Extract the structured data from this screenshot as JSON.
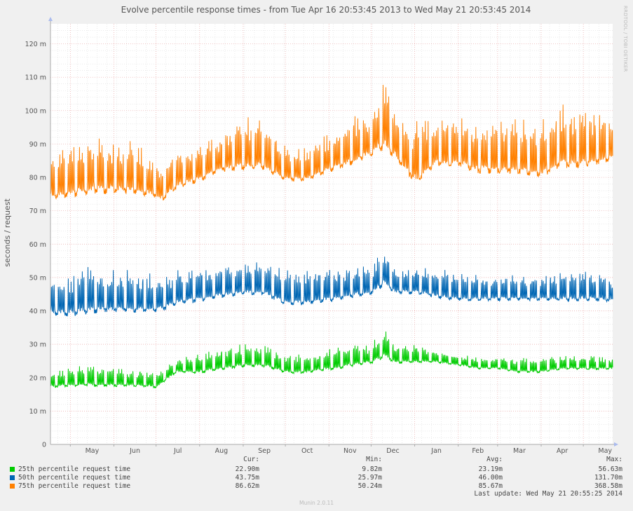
{
  "chart_data": {
    "type": "line",
    "title": "Evolve percentile response times - from Tue Apr 16 20:53:45 2013 to Wed May 21 20:53:45 2014",
    "ylabel": "seconds / request",
    "xlabel": "",
    "ylim": [
      0,
      0.126
    ],
    "y_ticks": [
      {
        "value": 0,
        "label": "0"
      },
      {
        "value": 0.01,
        "label": "10 m"
      },
      {
        "value": 0.02,
        "label": "20 m"
      },
      {
        "value": 0.03,
        "label": "30 m"
      },
      {
        "value": 0.04,
        "label": "40 m"
      },
      {
        "value": 0.05,
        "label": "50 m"
      },
      {
        "value": 0.06,
        "label": "60 m"
      },
      {
        "value": 0.07,
        "label": "70 m"
      },
      {
        "value": 0.08,
        "label": "80 m"
      },
      {
        "value": 0.09,
        "label": "90 m"
      },
      {
        "value": 0.1,
        "label": "100 m"
      },
      {
        "value": 0.11,
        "label": "110 m"
      },
      {
        "value": 0.12,
        "label": "120 m"
      }
    ],
    "x_range": [
      "2013-04-16",
      "2014-05-21"
    ],
    "x_ticks": [
      "May",
      "Jun",
      "Jul",
      "Aug",
      "Sep",
      "Oct",
      "Nov",
      "Dec",
      "Jan",
      "Feb",
      "Mar",
      "Apr",
      "May"
    ],
    "grid": true,
    "legend_position": "bottom",
    "series": [
      {
        "name": "25th percentile request time",
        "color": "#00cc00",
        "x": [
          "2013-04-16",
          "2013-05-01",
          "2013-05-15",
          "2013-06-01",
          "2013-06-15",
          "2013-07-01",
          "2013-07-04",
          "2013-07-15",
          "2013-08-01",
          "2013-08-15",
          "2013-09-01",
          "2013-09-15",
          "2013-10-01",
          "2013-10-15",
          "2013-11-01",
          "2013-11-15",
          "2013-12-01",
          "2013-12-10",
          "2013-12-18",
          "2014-01-01",
          "2014-01-15",
          "2014-02-01",
          "2014-02-15",
          "2014-03-01",
          "2014-03-15",
          "2014-04-01",
          "2014-04-15",
          "2014-05-01",
          "2014-05-21"
        ],
        "values": [
          0.0175,
          0.018,
          0.0182,
          0.018,
          0.018,
          0.0175,
          0.0185,
          0.022,
          0.022,
          0.023,
          0.024,
          0.024,
          0.022,
          0.022,
          0.023,
          0.024,
          0.025,
          0.027,
          0.025,
          0.025,
          0.025,
          0.024,
          0.023,
          0.023,
          0.022,
          0.022,
          0.023,
          0.023,
          0.0229
        ],
        "peaks": [
          0.022,
          0.023,
          0.024,
          0.023,
          0.023,
          0.022,
          0.022,
          0.026,
          0.027,
          0.029,
          0.03,
          0.03,
          0.027,
          0.027,
          0.029,
          0.03,
          0.03,
          0.035,
          0.03,
          0.03,
          0.028,
          0.027,
          0.026,
          0.026,
          0.026,
          0.026,
          0.027,
          0.027,
          0.026
        ],
        "stats": {
          "cur": "22.90m",
          "min": "9.82m",
          "avg": "23.19m",
          "max": "56.63m"
        }
      },
      {
        "name": "50th percentile request time",
        "color": "#0066b3",
        "x": [
          "2013-04-16",
          "2013-05-01",
          "2013-05-15",
          "2013-06-01",
          "2013-06-15",
          "2013-07-01",
          "2013-07-04",
          "2013-07-15",
          "2013-08-01",
          "2013-08-15",
          "2013-09-01",
          "2013-09-15",
          "2013-10-01",
          "2013-10-15",
          "2013-11-01",
          "2013-11-15",
          "2013-12-01",
          "2013-12-10",
          "2013-12-18",
          "2014-01-01",
          "2014-01-15",
          "2014-02-01",
          "2014-02-15",
          "2014-03-01",
          "2014-03-15",
          "2014-04-01",
          "2014-04-15",
          "2014-05-01",
          "2014-05-21"
        ],
        "values": [
          0.04,
          0.04,
          0.041,
          0.041,
          0.041,
          0.041,
          0.041,
          0.043,
          0.044,
          0.045,
          0.046,
          0.046,
          0.043,
          0.043,
          0.044,
          0.045,
          0.046,
          0.049,
          0.046,
          0.046,
          0.045,
          0.044,
          0.044,
          0.044,
          0.044,
          0.044,
          0.044,
          0.044,
          0.0437
        ],
        "peaks": [
          0.05,
          0.052,
          0.053,
          0.052,
          0.052,
          0.051,
          0.051,
          0.052,
          0.053,
          0.054,
          0.055,
          0.055,
          0.052,
          0.052,
          0.053,
          0.054,
          0.054,
          0.059,
          0.054,
          0.053,
          0.053,
          0.052,
          0.051,
          0.051,
          0.051,
          0.051,
          0.052,
          0.052,
          0.051
        ],
        "stats": {
          "cur": "43.75m",
          "min": "25.97m",
          "avg": "46.00m",
          "max": "131.70m"
        }
      },
      {
        "name": "75th percentile request time",
        "color": "#ff8000",
        "x": [
          "2013-04-16",
          "2013-05-01",
          "2013-05-15",
          "2013-06-01",
          "2013-06-15",
          "2013-07-01",
          "2013-07-04",
          "2013-07-15",
          "2013-08-01",
          "2013-08-15",
          "2013-09-01",
          "2013-09-15",
          "2013-10-01",
          "2013-10-15",
          "2013-11-01",
          "2013-11-15",
          "2013-12-01",
          "2013-12-10",
          "2013-12-18",
          "2014-01-01",
          "2014-01-15",
          "2014-02-01",
          "2014-02-15",
          "2014-03-01",
          "2014-03-15",
          "2014-04-01",
          "2014-04-15",
          "2014-05-01",
          "2014-05-21"
        ],
        "values": [
          0.075,
          0.076,
          0.077,
          0.077,
          0.077,
          0.075,
          0.074,
          0.078,
          0.08,
          0.083,
          0.084,
          0.084,
          0.08,
          0.08,
          0.083,
          0.085,
          0.088,
          0.091,
          0.087,
          0.08,
          0.085,
          0.085,
          0.083,
          0.083,
          0.083,
          0.082,
          0.085,
          0.085,
          0.0866
        ],
        "peaks": [
          0.088,
          0.09,
          0.092,
          0.091,
          0.091,
          0.085,
          0.085,
          0.088,
          0.09,
          0.093,
          0.099,
          0.097,
          0.089,
          0.089,
          0.094,
          0.097,
          0.1,
          0.112,
          0.098,
          0.097,
          0.098,
          0.098,
          0.097,
          0.097,
          0.097,
          0.097,
          0.101,
          0.1,
          0.099
        ],
        "stats": {
          "cur": "86.62m",
          "min": "50.24m",
          "avg": "85.67m",
          "max": "368.58m"
        }
      }
    ]
  },
  "legend": {
    "headers": {
      "cur": "Cur:",
      "min": "Min:",
      "avg": "Avg:",
      "max": "Max:"
    }
  },
  "last_update": "Last update: Wed May 21 20:55:25 2014",
  "footer": "Munin 2.0.11",
  "side_label": "RRDTOOL / TOBI OETIKER",
  "colors": {
    "background": "#f0f0f0",
    "canvas": "#ffffff",
    "major_grid": "#e8a6a6",
    "minor_grid": "#dddddd",
    "axis": "#aaaaaa"
  }
}
